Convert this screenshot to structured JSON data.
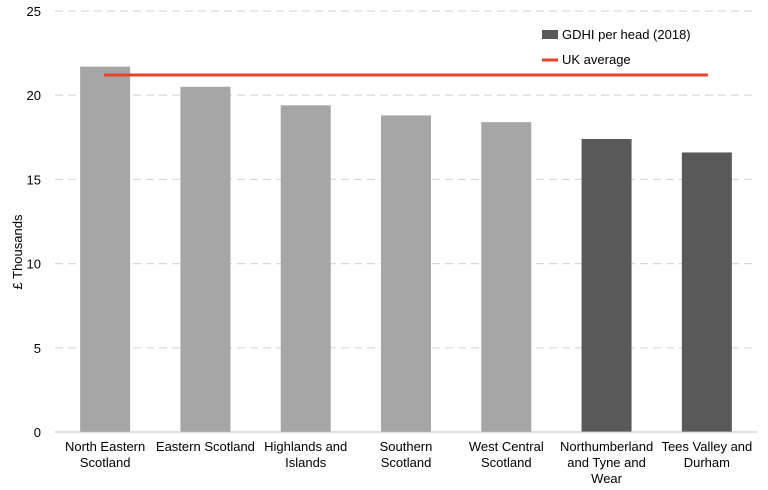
{
  "chart_data": {
    "type": "bar",
    "title": "",
    "xlabel": "",
    "ylabel": "£ Thousands",
    "ylim": [
      0,
      25
    ],
    "yticks": [
      0,
      5,
      10,
      15,
      20,
      25
    ],
    "grid": true,
    "legend_position": "top-right",
    "categories": [
      [
        "North Eastern",
        "Scotland"
      ],
      [
        "Eastern Scotland"
      ],
      [
        "Highlands and",
        "Islands"
      ],
      [
        "Southern",
        "Scotland"
      ],
      [
        "West Central",
        "Scotland"
      ],
      [
        "Northumberland",
        "and Tyne and",
        "Wear"
      ],
      [
        "Tees Valley and",
        "Durham"
      ]
    ],
    "series": [
      {
        "name": "GDHI per head (2018)",
        "type": "bar",
        "values": [
          21.7,
          20.5,
          19.4,
          18.8,
          18.4,
          17.4,
          16.6
        ],
        "bar_colors": [
          "#a6a6a6",
          "#a6a6a6",
          "#a6a6a6",
          "#a6a6a6",
          "#a6a6a6",
          "#595959",
          "#595959"
        ],
        "legend_color": "#595959"
      },
      {
        "name": "UK average",
        "type": "line",
        "value": 21.2,
        "color": "#e8412c"
      }
    ]
  }
}
